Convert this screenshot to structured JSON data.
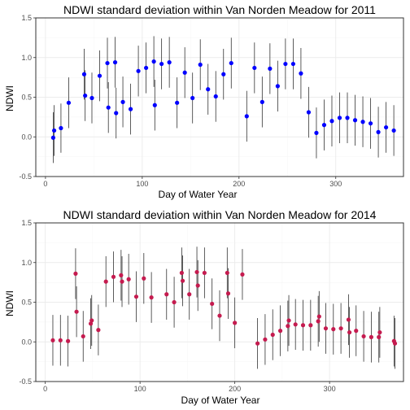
{
  "chart_data": [
    {
      "type": "scatter",
      "title": "NDWI standard deviation within Van Norden Meadow for 2011",
      "xlabel": "Day of Water Year",
      "ylabel": "NDWI",
      "xlim": [
        -10,
        370
      ],
      "ylim": [
        -0.5,
        1.5
      ],
      "x_ticks": [
        0,
        100,
        200,
        300
      ],
      "y_ticks": [
        -0.5,
        0.0,
        0.5,
        1.0,
        1.5
      ],
      "y_tick_labels": [
        "-0.5",
        "0.0",
        "0.5",
        "1.0",
        "1.5"
      ],
      "grid": true,
      "error_bars": true,
      "point_color": "#0000ff",
      "points": [
        {
          "x": 8,
          "y": -0.01,
          "lo": -0.33,
          "hi": 0.31
        },
        {
          "x": 9,
          "y": 0.08,
          "lo": -0.24,
          "hi": 0.4
        },
        {
          "x": 16,
          "y": 0.11,
          "lo": -0.2,
          "hi": 0.42
        },
        {
          "x": 24,
          "y": 0.43,
          "lo": 0.11,
          "hi": 0.75
        },
        {
          "x": 40,
          "y": 0.79,
          "lo": 0.47,
          "hi": 1.11
        },
        {
          "x": 41,
          "y": 0.52,
          "lo": 0.2,
          "hi": 0.84
        },
        {
          "x": 48,
          "y": 0.49,
          "lo": 0.17,
          "hi": 0.81
        },
        {
          "x": 56,
          "y": 0.77,
          "lo": 0.45,
          "hi": 1.09
        },
        {
          "x": 64,
          "y": 0.93,
          "lo": 0.61,
          "hi": 1.25
        },
        {
          "x": 65,
          "y": 0.37,
          "lo": 0.05,
          "hi": 0.69
        },
        {
          "x": 72,
          "y": 0.94,
          "lo": 0.62,
          "hi": 1.26
        },
        {
          "x": 73,
          "y": 0.3,
          "lo": -0.02,
          "hi": 0.62
        },
        {
          "x": 80,
          "y": 0.44,
          "lo": 0.12,
          "hi": 0.76
        },
        {
          "x": 88,
          "y": 0.35,
          "lo": 0.03,
          "hi": 0.67
        },
        {
          "x": 96,
          "y": 0.83,
          "lo": 0.51,
          "hi": 1.15
        },
        {
          "x": 104,
          "y": 0.87,
          "lo": 0.55,
          "hi": 1.19
        },
        {
          "x": 112,
          "y": 0.95,
          "lo": 0.63,
          "hi": 1.27
        },
        {
          "x": 113,
          "y": 0.4,
          "lo": 0.08,
          "hi": 0.72
        },
        {
          "x": 120,
          "y": 0.92,
          "lo": 0.6,
          "hi": 1.24
        },
        {
          "x": 128,
          "y": 0.94,
          "lo": 0.62,
          "hi": 1.26
        },
        {
          "x": 136,
          "y": 0.43,
          "lo": 0.11,
          "hi": 0.75
        },
        {
          "x": 144,
          "y": 0.81,
          "lo": 0.49,
          "hi": 1.13
        },
        {
          "x": 152,
          "y": 0.49,
          "lo": 0.17,
          "hi": 0.81
        },
        {
          "x": 160,
          "y": 0.91,
          "lo": 0.59,
          "hi": 1.23
        },
        {
          "x": 168,
          "y": 0.6,
          "lo": 0.28,
          "hi": 0.92
        },
        {
          "x": 176,
          "y": 0.51,
          "lo": 0.19,
          "hi": 0.83
        },
        {
          "x": 184,
          "y": 0.79,
          "lo": 0.47,
          "hi": 1.11
        },
        {
          "x": 192,
          "y": 0.93,
          "lo": 0.61,
          "hi": 1.25
        },
        {
          "x": 208,
          "y": 0.26,
          "lo": -0.06,
          "hi": 0.58
        },
        {
          "x": 216,
          "y": 0.87,
          "lo": 0.55,
          "hi": 1.19
        },
        {
          "x": 224,
          "y": 0.44,
          "lo": 0.12,
          "hi": 0.76
        },
        {
          "x": 232,
          "y": 0.86,
          "lo": 0.54,
          "hi": 1.18
        },
        {
          "x": 240,
          "y": 0.64,
          "lo": 0.32,
          "hi": 0.96
        },
        {
          "x": 248,
          "y": 0.92,
          "lo": 0.6,
          "hi": 1.24
        },
        {
          "x": 256,
          "y": 0.92,
          "lo": 0.6,
          "hi": 1.24
        },
        {
          "x": 264,
          "y": 0.8,
          "lo": 0.48,
          "hi": 1.12
        },
        {
          "x": 272,
          "y": 0.31,
          "lo": -0.01,
          "hi": 0.63
        },
        {
          "x": 280,
          "y": 0.05,
          "lo": -0.27,
          "hi": 0.37
        },
        {
          "x": 288,
          "y": 0.15,
          "lo": -0.17,
          "hi": 0.47
        },
        {
          "x": 296,
          "y": 0.2,
          "lo": -0.12,
          "hi": 0.52
        },
        {
          "x": 304,
          "y": 0.24,
          "lo": -0.08,
          "hi": 0.56
        },
        {
          "x": 312,
          "y": 0.24,
          "lo": -0.08,
          "hi": 0.56
        },
        {
          "x": 320,
          "y": 0.21,
          "lo": -0.11,
          "hi": 0.53
        },
        {
          "x": 328,
          "y": 0.19,
          "lo": -0.13,
          "hi": 0.51
        },
        {
          "x": 336,
          "y": 0.17,
          "lo": -0.15,
          "hi": 0.49
        },
        {
          "x": 344,
          "y": 0.06,
          "lo": -0.26,
          "hi": 0.38
        },
        {
          "x": 352,
          "y": 0.12,
          "lo": -0.2,
          "hi": 0.44
        },
        {
          "x": 360,
          "y": 0.08,
          "lo": -0.24,
          "hi": 0.4
        }
      ]
    },
    {
      "type": "scatter",
      "title": "NDWI standard deviation within Van Norden Meadow for 2014",
      "xlabel": "Day of Water Year",
      "ylabel": "NDWI",
      "xlim": [
        -10,
        378
      ],
      "ylim": [
        -0.5,
        1.5
      ],
      "x_ticks": [
        0,
        100,
        200,
        300
      ],
      "y_ticks": [
        -0.5,
        0.0,
        0.5,
        1.0,
        1.5
      ],
      "y_tick_labels": [
        "-0.5",
        "0.0",
        "0.5",
        "1.0",
        "1.5"
      ],
      "grid": true,
      "error_bars": true,
      "point_color": "#c51b4f",
      "points": [
        {
          "x": 8,
          "y": 0.02,
          "lo": -0.3,
          "hi": 0.34
        },
        {
          "x": 16,
          "y": 0.02,
          "lo": -0.3,
          "hi": 0.34
        },
        {
          "x": 24,
          "y": 0.01,
          "lo": -0.31,
          "hi": 0.33
        },
        {
          "x": 32,
          "y": 0.86,
          "lo": 0.54,
          "hi": 1.18
        },
        {
          "x": 33,
          "y": 0.38,
          "lo": 0.06,
          "hi": 0.7
        },
        {
          "x": 40,
          "y": 0.07,
          "lo": -0.25,
          "hi": 0.39
        },
        {
          "x": 48,
          "y": 0.23,
          "lo": -0.09,
          "hi": 0.55
        },
        {
          "x": 49,
          "y": 0.27,
          "lo": -0.05,
          "hi": 0.59
        },
        {
          "x": 56,
          "y": 0.15,
          "lo": -0.17,
          "hi": 0.47
        },
        {
          "x": 64,
          "y": 0.76,
          "lo": 0.44,
          "hi": 1.08
        },
        {
          "x": 72,
          "y": 0.82,
          "lo": 0.5,
          "hi": 1.14
        },
        {
          "x": 80,
          "y": 0.84,
          "lo": 0.52,
          "hi": 1.16
        },
        {
          "x": 81,
          "y": 0.76,
          "lo": 0.44,
          "hi": 1.08
        },
        {
          "x": 88,
          "y": 0.79,
          "lo": 0.47,
          "hi": 1.11
        },
        {
          "x": 96,
          "y": 0.57,
          "lo": 0.25,
          "hi": 0.89
        },
        {
          "x": 104,
          "y": 0.8,
          "lo": 0.48,
          "hi": 1.12
        },
        {
          "x": 112,
          "y": 0.56,
          "lo": 0.24,
          "hi": 0.88
        },
        {
          "x": 128,
          "y": 0.6,
          "lo": 0.28,
          "hi": 0.92
        },
        {
          "x": 136,
          "y": 0.5,
          "lo": 0.18,
          "hi": 0.82
        },
        {
          "x": 144,
          "y": 0.87,
          "lo": 0.55,
          "hi": 1.19
        },
        {
          "x": 145,
          "y": 0.77,
          "lo": 0.45,
          "hi": 1.09
        },
        {
          "x": 152,
          "y": 0.6,
          "lo": 0.28,
          "hi": 0.92
        },
        {
          "x": 160,
          "y": 0.88,
          "lo": 0.56,
          "hi": 1.2
        },
        {
          "x": 161,
          "y": 0.71,
          "lo": 0.39,
          "hi": 1.03
        },
        {
          "x": 168,
          "y": 0.87,
          "lo": 0.55,
          "hi": 1.19
        },
        {
          "x": 176,
          "y": 0.48,
          "lo": 0.16,
          "hi": 0.8
        },
        {
          "x": 184,
          "y": 0.33,
          "lo": 0.01,
          "hi": 0.65
        },
        {
          "x": 192,
          "y": 0.87,
          "lo": 0.55,
          "hi": 1.19
        },
        {
          "x": 193,
          "y": 0.61,
          "lo": 0.29,
          "hi": 0.93
        },
        {
          "x": 200,
          "y": 0.24,
          "lo": -0.08,
          "hi": 0.56
        },
        {
          "x": 208,
          "y": 0.85,
          "lo": 0.53,
          "hi": 1.17
        },
        {
          "x": 224,
          "y": -0.02,
          "lo": -0.34,
          "hi": 0.3
        },
        {
          "x": 232,
          "y": 0.03,
          "lo": -0.29,
          "hi": 0.35
        },
        {
          "x": 240,
          "y": 0.09,
          "lo": -0.23,
          "hi": 0.41
        },
        {
          "x": 248,
          "y": 0.14,
          "lo": -0.18,
          "hi": 0.46
        },
        {
          "x": 256,
          "y": 0.2,
          "lo": -0.12,
          "hi": 0.52
        },
        {
          "x": 257,
          "y": 0.27,
          "lo": -0.05,
          "hi": 0.59
        },
        {
          "x": 264,
          "y": 0.22,
          "lo": -0.1,
          "hi": 0.54
        },
        {
          "x": 272,
          "y": 0.21,
          "lo": -0.11,
          "hi": 0.53
        },
        {
          "x": 280,
          "y": 0.21,
          "lo": -0.11,
          "hi": 0.53
        },
        {
          "x": 288,
          "y": 0.26,
          "lo": -0.06,
          "hi": 0.58
        },
        {
          "x": 289,
          "y": 0.32,
          "lo": 0.0,
          "hi": 0.64
        },
        {
          "x": 296,
          "y": 0.17,
          "lo": -0.15,
          "hi": 0.49
        },
        {
          "x": 304,
          "y": 0.16,
          "lo": -0.16,
          "hi": 0.48
        },
        {
          "x": 312,
          "y": 0.17,
          "lo": -0.15,
          "hi": 0.49
        },
        {
          "x": 320,
          "y": 0.28,
          "lo": -0.04,
          "hi": 0.6
        },
        {
          "x": 321,
          "y": 0.12,
          "lo": -0.2,
          "hi": 0.44
        },
        {
          "x": 328,
          "y": 0.14,
          "lo": -0.18,
          "hi": 0.46
        },
        {
          "x": 336,
          "y": 0.07,
          "lo": -0.25,
          "hi": 0.39
        },
        {
          "x": 344,
          "y": 0.06,
          "lo": -0.26,
          "hi": 0.38
        },
        {
          "x": 352,
          "y": 0.06,
          "lo": -0.26,
          "hi": 0.38
        },
        {
          "x": 353,
          "y": 0.12,
          "lo": -0.2,
          "hi": 0.44
        },
        {
          "x": 368,
          "y": 0.01,
          "lo": -0.31,
          "hi": 0.33
        },
        {
          "x": 369,
          "y": -0.02,
          "lo": -0.34,
          "hi": 0.3
        }
      ]
    }
  ]
}
